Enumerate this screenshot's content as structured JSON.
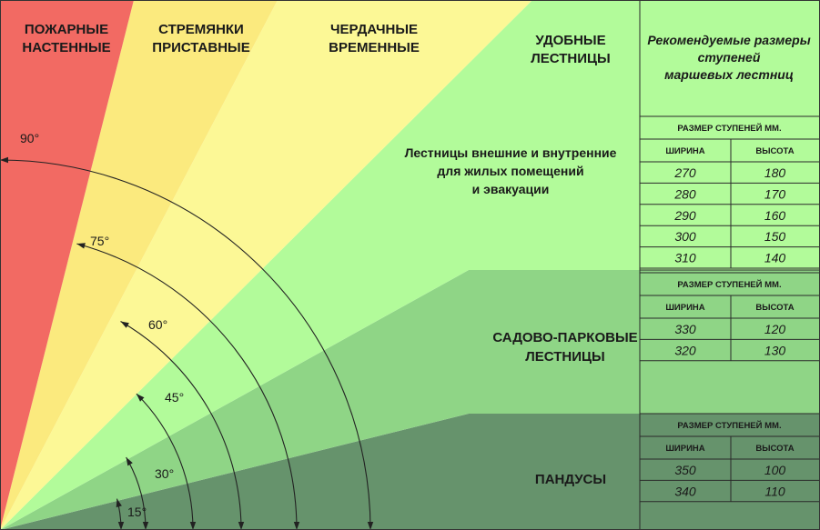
{
  "zones": {
    "fire": "ПОЖАРНЫЕ\nНАСТЕННЫЕ",
    "stepladders": "СТРЕМЯНКИ\nПРИСТАВНЫЕ",
    "attic": "ЧЕРДАЧНЫЕ\nВРЕМЕННЫЕ",
    "comfortable": "УДОБНЫЕ\nЛЕСТНИЦЫ",
    "comfortable_desc": "Лестницы внешние и внутренние\nдля жилых помещений\nи эвакуации",
    "garden": "САДОВО-ПАРКОВЫЕ\nЛЕСТНИЦЫ",
    "ramps": "ПАНДУСЫ"
  },
  "angles": [
    "90°",
    "75°",
    "60°",
    "45°",
    "30°",
    "15°"
  ],
  "table": {
    "title": "Рекомендуемые размеры\nступеней\nмаршевых лестниц",
    "size_header": "РАЗМЕР СТУПЕНЕЙ ММ.",
    "width_header": "ШИРИНА",
    "height_header": "ВЫСОТА",
    "comfortable_rows": [
      [
        "270",
        "180"
      ],
      [
        "280",
        "170"
      ],
      [
        "290",
        "160"
      ],
      [
        "300",
        "150"
      ],
      [
        "310",
        "140"
      ]
    ],
    "garden_rows": [
      [
        "330",
        "120"
      ],
      [
        "320",
        "130"
      ]
    ],
    "ramp_rows": [
      [
        "350",
        "100"
      ],
      [
        "340",
        "110"
      ]
    ]
  },
  "colors": {
    "fire": "#f26a63",
    "stepladders": "#fbea7e",
    "attic": "#fcf896",
    "comfortable": "#b2fb9a",
    "garden": "#8fd586",
    "ramps": "#66936c",
    "table_top": "#b2fb9a"
  }
}
